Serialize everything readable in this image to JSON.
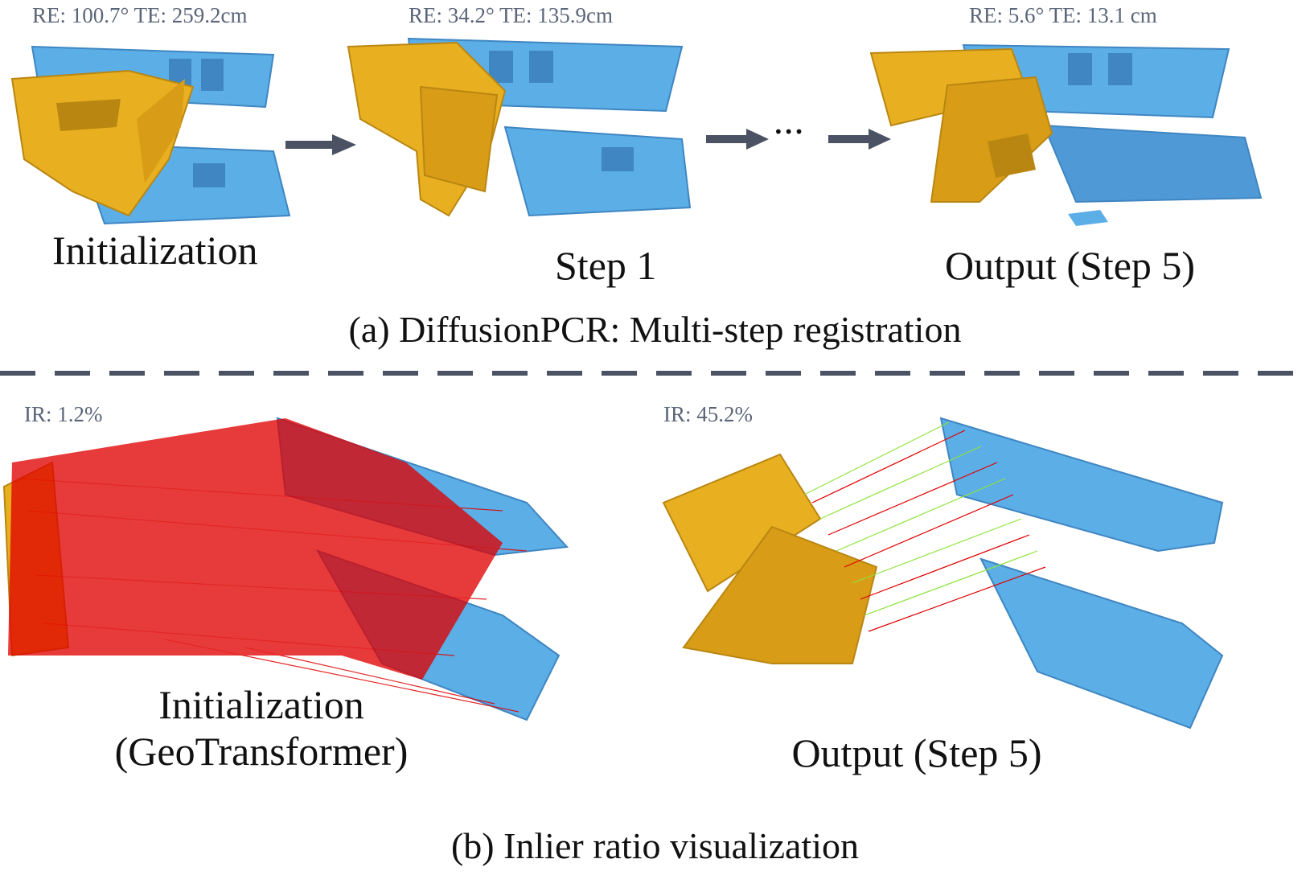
{
  "colors": {
    "source": "#E8B020",
    "source_dark": "#B98612",
    "target": "#5BAEE6",
    "target_dark": "#3F86C2",
    "outlier": "#E00000",
    "inlier": "#8EE33C",
    "arrow": "#4A5263",
    "divider": "#4A5263"
  },
  "panel_a": {
    "caption": "(a) DiffusionPCR: Multi-step registration",
    "steps": [
      {
        "metric": "RE: 100.7° TE: 259.2cm",
        "label": "Initialization"
      },
      {
        "metric": "RE: 34.2° TE: 135.9cm",
        "label": "Step 1"
      },
      {
        "metric": "RE: 5.6° TE: 13.1 cm",
        "label": "Output (Step 5)"
      }
    ],
    "ellipsis": "•••"
  },
  "panel_b": {
    "caption": "(b) Inlier ratio visualization",
    "views": [
      {
        "metric": "IR: 1.2%",
        "label_line1": "Initialization",
        "label_line2": "(GeoTransformer)"
      },
      {
        "metric": "IR: 45.2%",
        "label_line1": "Output (Step 5)",
        "label_line2": ""
      }
    ]
  }
}
